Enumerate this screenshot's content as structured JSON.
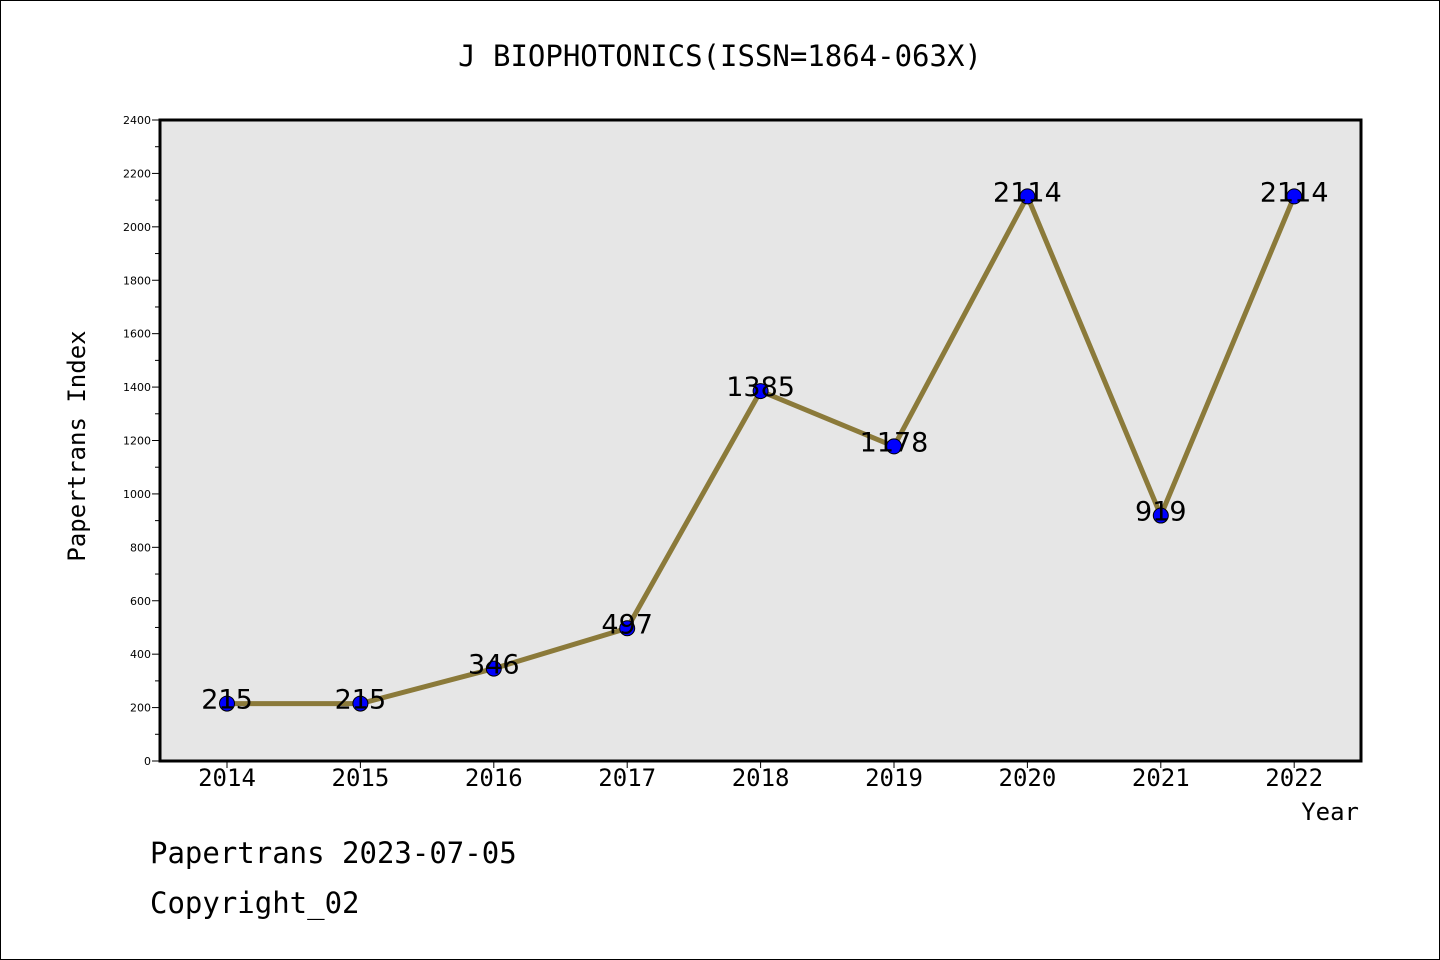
{
  "chart_data": {
    "type": "line",
    "title": "J BIOPHOTONICS(ISSN=1864-063X)",
    "xlabel": "Year",
    "ylabel": "Papertrans Index",
    "categories": [
      "2014",
      "2015",
      "2016",
      "2017",
      "2018",
      "2019",
      "2020",
      "2021",
      "2022"
    ],
    "series": [
      {
        "values": [
          215,
          215,
          346,
          497,
          1385,
          1178,
          2114,
          919,
          2114
        ]
      }
    ],
    "data_labels": [
      "215",
      "215",
      "346",
      "497",
      "1385",
      "1178",
      "2114",
      "919",
      "2114"
    ],
    "ylim": [
      0,
      2400
    ],
    "y_ticks": [
      "0",
      "200",
      "400",
      "600",
      "800",
      "1000",
      "1200",
      "1400",
      "1600",
      "1800",
      "2000",
      "2200",
      "2400"
    ],
    "y_minor_step": 100,
    "grid": false,
    "colors": {
      "line": "#8b7a3a",
      "marker": "#0000ff",
      "plot_bg": "#e6e6e6",
      "axes": "#000000"
    }
  },
  "footer": {
    "date_line": "Papertrans 2023-07-05",
    "copyright_line": "Copyright_02"
  }
}
